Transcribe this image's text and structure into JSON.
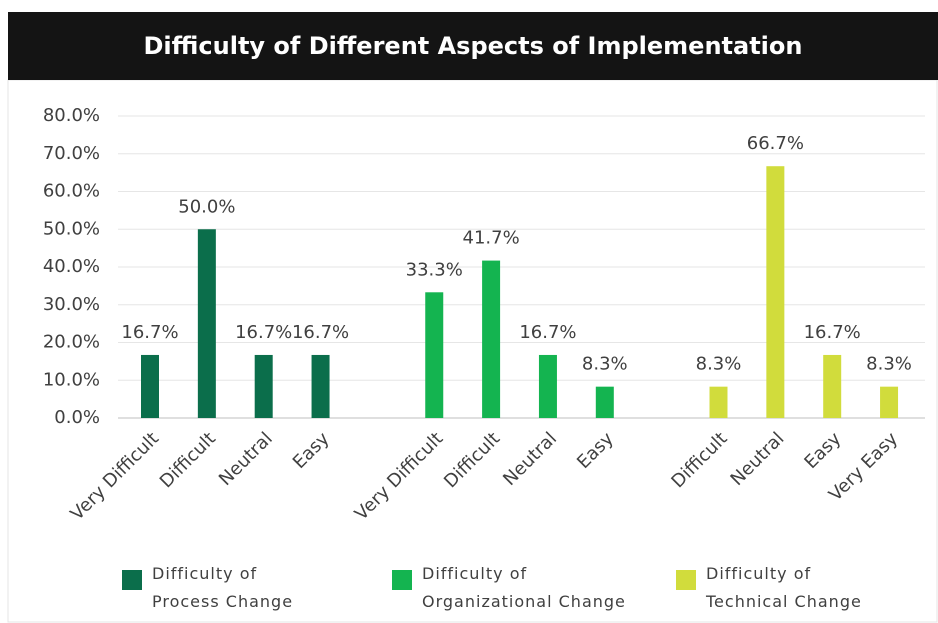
{
  "chart_data": {
    "type": "bar",
    "title": "Difficulty  of Different  Aspects of Implementation",
    "ylim": [
      0,
      80
    ],
    "yticks": [
      {
        "value": 0,
        "label": "0.0%"
      },
      {
        "value": 10,
        "label": "10.0%"
      },
      {
        "value": 20,
        "label": "20.0%"
      },
      {
        "value": 30,
        "label": "30.0%"
      },
      {
        "value": 40,
        "label": "40.0%"
      },
      {
        "value": 50,
        "label": "50.0%"
      },
      {
        "value": 60,
        "label": "60.0%"
      },
      {
        "value": 70,
        "label": "70.0%"
      },
      {
        "value": 80,
        "label": "80.0%"
      }
    ],
    "grid": true,
    "legend": "bottom",
    "series": [
      {
        "name": "Difficulty of Process Change",
        "color": "#0b6e4b",
        "categories": [
          "Very Difficult",
          "Difficult",
          "Neutral",
          "Easy"
        ],
        "values": [
          16.7,
          50.0,
          16.7,
          16.7
        ],
        "value_labels": [
          "16.7%",
          "50.0%",
          "16.7%",
          "16.7%"
        ]
      },
      {
        "name": "Difficulty of Organizational Change",
        "color": "#14b450",
        "categories": [
          "Very Difficult",
          "Difficult",
          "Neutral",
          "Easy"
        ],
        "values": [
          33.3,
          41.7,
          16.7,
          8.3
        ],
        "value_labels": [
          "33.3%",
          "41.7%",
          "16.7%",
          "8.3%"
        ]
      },
      {
        "name": "Difficulty of Technical Change",
        "color": "#d1dc3c",
        "categories": [
          "Difficult",
          "Neutral",
          "Easy",
          "Very Easy"
        ],
        "values": [
          8.3,
          66.7,
          16.7,
          8.3
        ],
        "value_labels": [
          "8.3%",
          "66.7%",
          "16.7%",
          "8.3%"
        ]
      }
    ]
  }
}
